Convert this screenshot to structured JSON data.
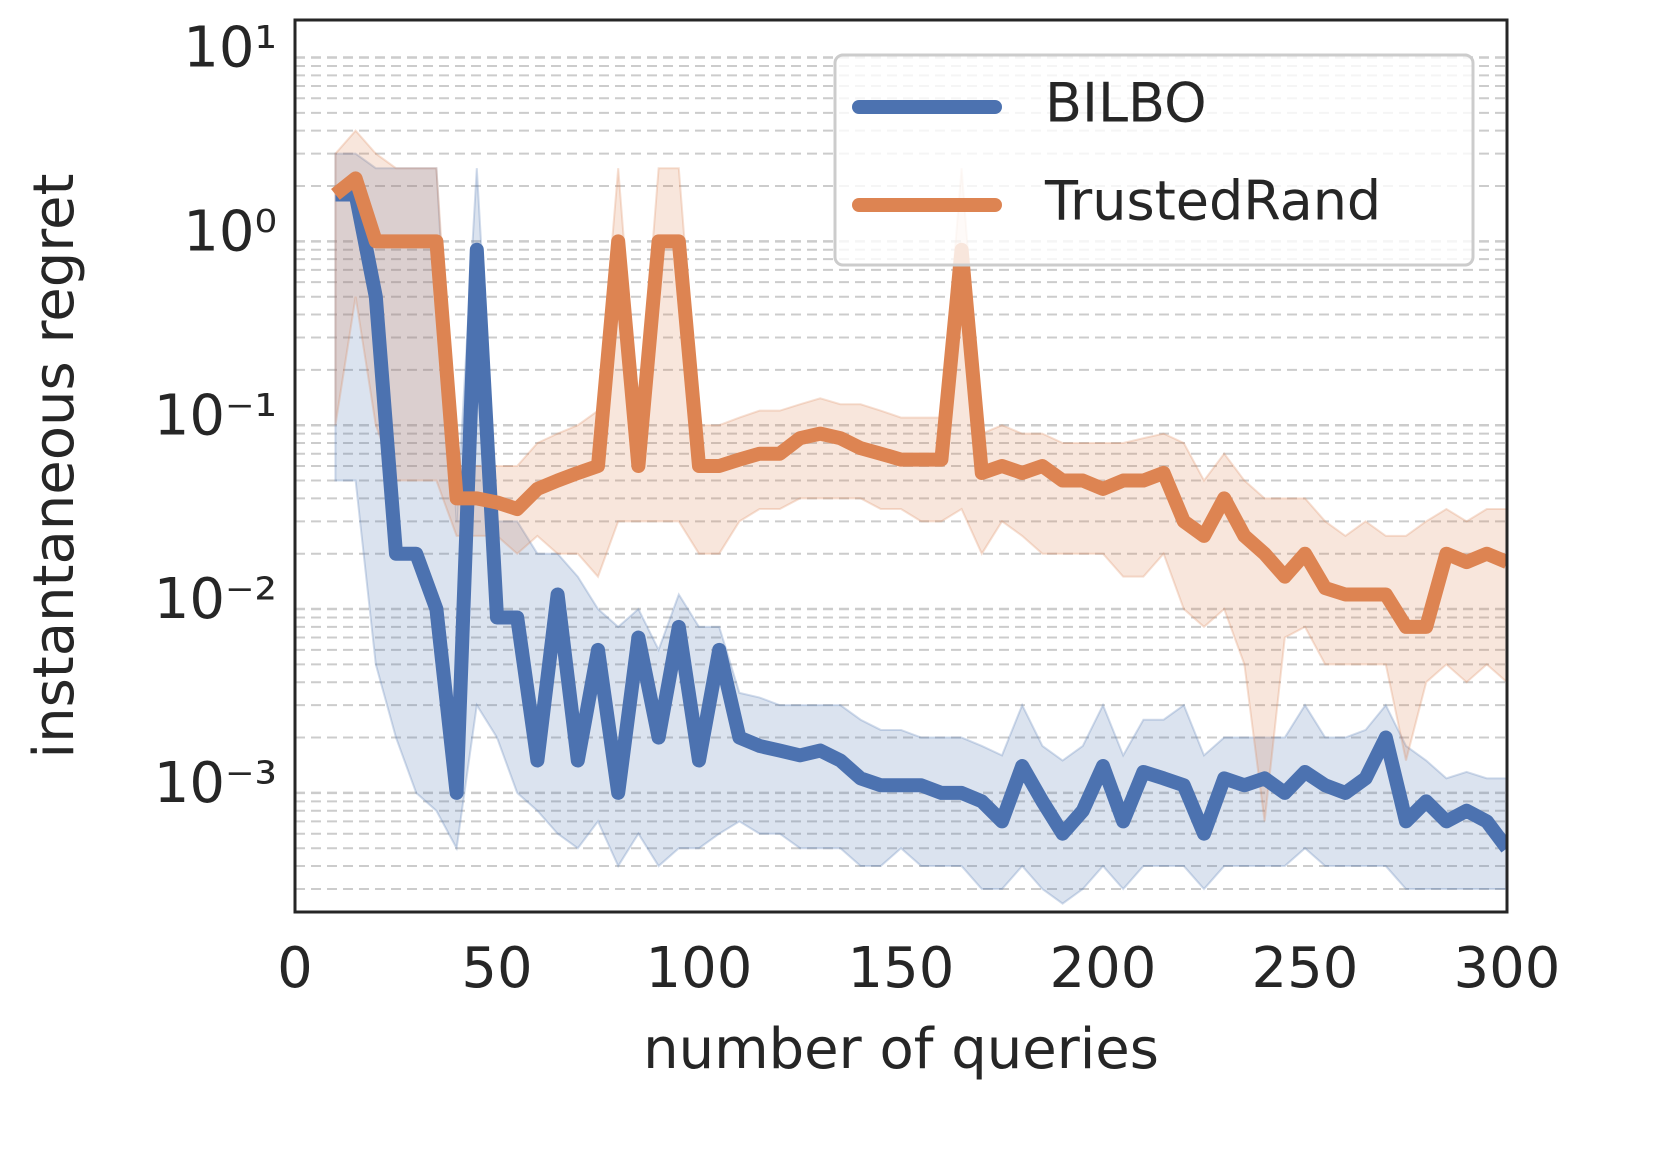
{
  "chart_data": {
    "type": "line",
    "xlabel": "number of queries",
    "ylabel": "instantaneous regret",
    "xlim": [
      0,
      300
    ],
    "xticks": [
      0,
      50,
      100,
      150,
      200,
      250,
      300
    ],
    "ylim": [
      0.000225,
      16
    ],
    "log_y": true,
    "yticks": [
      {
        "value": 10,
        "label": "10¹"
      },
      {
        "value": 1,
        "label": "10⁰"
      },
      {
        "value": 0.1,
        "label": "10⁻¹"
      },
      {
        "value": 0.01,
        "label": "10⁻²"
      },
      {
        "value": 0.001,
        "label": "10⁻³"
      }
    ],
    "grid": true,
    "minor_grid": true,
    "legend": "upper right",
    "x": [
      10,
      15,
      20,
      25,
      30,
      35,
      40,
      45,
      50,
      55,
      60,
      65,
      70,
      75,
      80,
      85,
      90,
      95,
      100,
      105,
      110,
      115,
      120,
      125,
      130,
      135,
      140,
      145,
      150,
      155,
      160,
      165,
      170,
      175,
      180,
      185,
      190,
      195,
      200,
      205,
      210,
      215,
      220,
      225,
      230,
      235,
      240,
      245,
      250,
      255,
      260,
      265,
      270,
      275,
      280,
      285,
      290,
      295,
      300
    ],
    "series": [
      {
        "name": "BILBO",
        "color": "#4c72b0",
        "values": [
          1.8,
          1.8,
          0.5,
          0.02,
          0.02,
          0.01,
          0.001,
          0.9,
          0.009,
          0.009,
          0.0015,
          0.012,
          0.0015,
          0.006,
          0.001,
          0.007,
          0.002,
          0.008,
          0.0015,
          0.006,
          0.002,
          0.0018,
          0.0017,
          0.0016,
          0.0017,
          0.0015,
          0.0012,
          0.0011,
          0.0011,
          0.0011,
          0.001,
          0.001,
          0.0009,
          0.0007,
          0.0014,
          0.0009,
          0.0006,
          0.0008,
          0.0014,
          0.0007,
          0.0013,
          0.0012,
          0.0011,
          0.0006,
          0.0012,
          0.0011,
          0.0012,
          0.001,
          0.0013,
          0.0011,
          0.001,
          0.0012,
          0.002,
          0.0007,
          0.0009,
          0.0007,
          0.0008,
          0.0007,
          0.0005
        ],
        "lower": [
          0.05,
          0.05,
          0.005,
          0.002,
          0.001,
          0.0008,
          0.0005,
          0.003,
          0.002,
          0.001,
          0.0008,
          0.0006,
          0.0005,
          0.0007,
          0.0004,
          0.0006,
          0.0004,
          0.0005,
          0.0005,
          0.0006,
          0.0007,
          0.0006,
          0.0006,
          0.0005,
          0.0005,
          0.0005,
          0.0004,
          0.0004,
          0.0005,
          0.0004,
          0.0004,
          0.0004,
          0.0003,
          0.0003,
          0.0004,
          0.0003,
          0.00025,
          0.0003,
          0.0004,
          0.0003,
          0.0004,
          0.0004,
          0.0004,
          0.0003,
          0.0004,
          0.0004,
          0.0004,
          0.0004,
          0.0005,
          0.0004,
          0.0004,
          0.0004,
          0.0004,
          0.0003,
          0.0003,
          0.0003,
          0.0003,
          0.0003,
          0.0003
        ],
        "upper": [
          3,
          3,
          2.5,
          2.5,
          2.5,
          2.5,
          0.03,
          2.5,
          0.03,
          0.03,
          0.02,
          0.02,
          0.015,
          0.01,
          0.008,
          0.01,
          0.006,
          0.012,
          0.008,
          0.008,
          0.0035,
          0.0033,
          0.003,
          0.003,
          0.003,
          0.003,
          0.0025,
          0.0022,
          0.0022,
          0.002,
          0.002,
          0.002,
          0.0018,
          0.0016,
          0.003,
          0.0018,
          0.0015,
          0.0018,
          0.003,
          0.0016,
          0.0025,
          0.0025,
          0.003,
          0.0016,
          0.002,
          0.002,
          0.002,
          0.002,
          0.003,
          0.002,
          0.002,
          0.0022,
          0.003,
          0.0018,
          0.0015,
          0.0012,
          0.0013,
          0.0012,
          0.0012
        ]
      },
      {
        "name": "TrustedRand",
        "color": "#dd8452",
        "values": [
          1.8,
          2.2,
          1,
          1,
          1,
          1,
          0.04,
          0.04,
          0.038,
          0.035,
          0.045,
          0.05,
          0.055,
          0.06,
          1,
          0.06,
          1,
          1,
          0.06,
          0.06,
          0.065,
          0.07,
          0.07,
          0.085,
          0.09,
          0.085,
          0.075,
          0.07,
          0.065,
          0.065,
          0.065,
          0.9,
          0.055,
          0.06,
          0.055,
          0.06,
          0.05,
          0.05,
          0.045,
          0.05,
          0.05,
          0.055,
          0.03,
          0.025,
          0.04,
          0.025,
          0.02,
          0.015,
          0.02,
          0.013,
          0.012,
          0.012,
          0.012,
          0.008,
          0.008,
          0.02,
          0.018,
          0.02,
          0.018
        ],
        "lower": [
          0.1,
          0.5,
          0.1,
          0.05,
          0.05,
          0.05,
          0.025,
          0.025,
          0.025,
          0.02,
          0.025,
          0.02,
          0.02,
          0.015,
          0.03,
          0.03,
          0.03,
          0.03,
          0.02,
          0.02,
          0.03,
          0.035,
          0.035,
          0.04,
          0.04,
          0.04,
          0.04,
          0.035,
          0.035,
          0.03,
          0.03,
          0.035,
          0.02,
          0.03,
          0.025,
          0.02,
          0.02,
          0.02,
          0.02,
          0.015,
          0.015,
          0.02,
          0.01,
          0.008,
          0.01,
          0.005,
          0.0007,
          0.007,
          0.008,
          0.005,
          0.005,
          0.005,
          0.005,
          0.0015,
          0.004,
          0.005,
          0.004,
          0.005,
          0.004
        ],
        "upper": [
          3,
          4,
          3,
          2.5,
          2.5,
          2.5,
          0.06,
          0.06,
          0.06,
          0.06,
          0.08,
          0.09,
          0.1,
          0.12,
          2.5,
          0.1,
          2.5,
          2.5,
          0.1,
          0.1,
          0.11,
          0.12,
          0.12,
          0.13,
          0.14,
          0.13,
          0.13,
          0.12,
          0.11,
          0.11,
          0.11,
          2.5,
          0.09,
          0.1,
          0.09,
          0.09,
          0.08,
          0.08,
          0.08,
          0.08,
          0.085,
          0.09,
          0.08,
          0.05,
          0.07,
          0.05,
          0.04,
          0.04,
          0.04,
          0.03,
          0.025,
          0.03,
          0.025,
          0.025,
          0.03,
          0.035,
          0.03,
          0.035,
          0.035
        ]
      }
    ]
  }
}
